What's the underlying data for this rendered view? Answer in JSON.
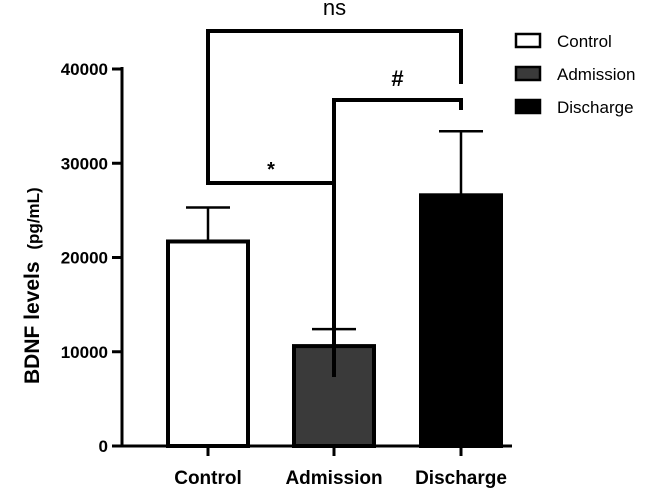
{
  "chart_data": {
    "type": "bar",
    "categories": [
      "Control",
      "Admission",
      "Discharge"
    ],
    "values": [
      21700,
      10600,
      26600
    ],
    "errors": [
      3600,
      1800,
      6800
    ],
    "colors": [
      "#ffffff",
      "#3a3a3a",
      "#000000"
    ],
    "ylabel": "BDNF levels",
    "ylabel_unit": "(pg/mL)",
    "ylim": [
      0,
      40000
    ],
    "yticks": [
      0,
      10000,
      20000,
      30000,
      40000
    ],
    "ytick_labels": [
      "0",
      "10000",
      "20000",
      "30000",
      "40000"
    ],
    "legend": {
      "position": "top-right",
      "entries": [
        {
          "label": "Control",
          "color": "#ffffff"
        },
        {
          "label": "Admission",
          "color": "#3a3a3a"
        },
        {
          "label": "Discharge",
          "color": "#000000"
        }
      ]
    },
    "significance": [
      {
        "from": 0,
        "to": 1,
        "label": "*"
      },
      {
        "from": 1,
        "to": 2,
        "label": "#"
      },
      {
        "from": 0,
        "to": 2,
        "label": "ns"
      }
    ]
  }
}
